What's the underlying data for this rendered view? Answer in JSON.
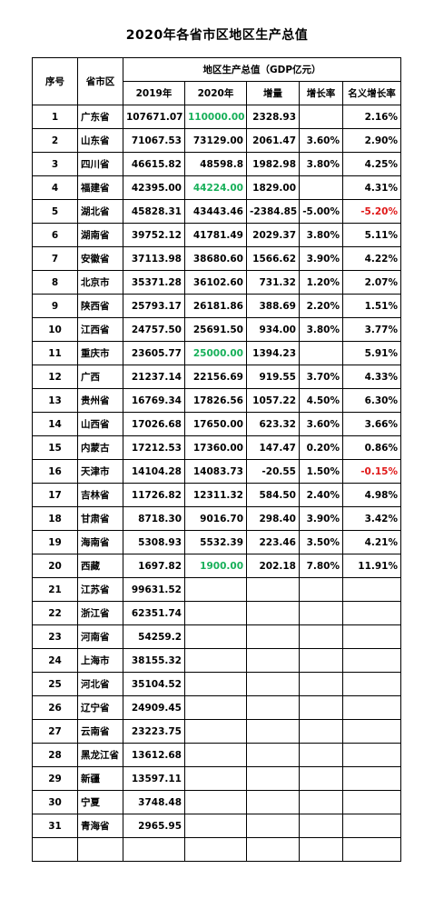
{
  "title": "2020年各省市区地区生产总值",
  "headers": {
    "index": "序号",
    "province": "省市区",
    "gdp_group": "地区生产总值（GDP亿元）",
    "y2019": "2019年",
    "y2020": "2020年",
    "increase": "增量",
    "growth": "增长率",
    "nominal_growth": "名义增长率"
  },
  "colors": {
    "estimated_value": "#18b05a",
    "negative_growth": "#e01818"
  },
  "rows": [
    {
      "idx": "1",
      "prov": "广东省",
      "v2019": "107671.07",
      "v2020": "110000.00",
      "v2020_color": "green",
      "inc": "2328.93",
      "growth": "",
      "nominal": "2.16%",
      "nominal_color": ""
    },
    {
      "idx": "2",
      "prov": "山东省",
      "v2019": "71067.53",
      "v2020": "73129.00",
      "v2020_color": "",
      "inc": "2061.47",
      "growth": "3.60%",
      "nominal": "2.90%",
      "nominal_color": ""
    },
    {
      "idx": "3",
      "prov": "四川省",
      "v2019": "46615.82",
      "v2020": "48598.8",
      "v2020_color": "",
      "inc": "1982.98",
      "growth": "3.80%",
      "nominal": "4.25%",
      "nominal_color": ""
    },
    {
      "idx": "4",
      "prov": "福建省",
      "v2019": "42395.00",
      "v2020": "44224.00",
      "v2020_color": "green",
      "inc": "1829.00",
      "growth": "",
      "nominal": "4.31%",
      "nominal_color": ""
    },
    {
      "idx": "5",
      "prov": "湖北省",
      "v2019": "45828.31",
      "v2020": "43443.46",
      "v2020_color": "",
      "inc": "-2384.85",
      "growth": "-5.00%",
      "nominal": "-5.20%",
      "nominal_color": "red"
    },
    {
      "idx": "6",
      "prov": "湖南省",
      "v2019": "39752.12",
      "v2020": "41781.49",
      "v2020_color": "",
      "inc": "2029.37",
      "growth": "3.80%",
      "nominal": "5.11%",
      "nominal_color": ""
    },
    {
      "idx": "7",
      "prov": "安徽省",
      "v2019": "37113.98",
      "v2020": "38680.60",
      "v2020_color": "",
      "inc": "1566.62",
      "growth": "3.90%",
      "nominal": "4.22%",
      "nominal_color": ""
    },
    {
      "idx": "8",
      "prov": "北京市",
      "v2019": "35371.28",
      "v2020": "36102.60",
      "v2020_color": "",
      "inc": "731.32",
      "growth": "1.20%",
      "nominal": "2.07%",
      "nominal_color": ""
    },
    {
      "idx": "9",
      "prov": "陕西省",
      "v2019": "25793.17",
      "v2020": "26181.86",
      "v2020_color": "",
      "inc": "388.69",
      "growth": "2.20%",
      "nominal": "1.51%",
      "nominal_color": ""
    },
    {
      "idx": "10",
      "prov": "江西省",
      "v2019": "24757.50",
      "v2020": "25691.50",
      "v2020_color": "",
      "inc": "934.00",
      "growth": "3.80%",
      "nominal": "3.77%",
      "nominal_color": ""
    },
    {
      "idx": "11",
      "prov": "重庆市",
      "v2019": "23605.77",
      "v2020": "25000.00",
      "v2020_color": "green",
      "inc": "1394.23",
      "growth": "",
      "nominal": "5.91%",
      "nominal_color": ""
    },
    {
      "idx": "12",
      "prov": "广西",
      "v2019": "21237.14",
      "v2020": "22156.69",
      "v2020_color": "",
      "inc": "919.55",
      "growth": "3.70%",
      "nominal": "4.33%",
      "nominal_color": ""
    },
    {
      "idx": "13",
      "prov": "贵州省",
      "v2019": "16769.34",
      "v2020": "17826.56",
      "v2020_color": "",
      "inc": "1057.22",
      "growth": "4.50%",
      "nominal": "6.30%",
      "nominal_color": ""
    },
    {
      "idx": "14",
      "prov": "山西省",
      "v2019": "17026.68",
      "v2020": "17650.00",
      "v2020_color": "",
      "inc": "623.32",
      "growth": "3.60%",
      "nominal": "3.66%",
      "nominal_color": ""
    },
    {
      "idx": "15",
      "prov": "内蒙古",
      "v2019": "17212.53",
      "v2020": "17360.00",
      "v2020_color": "",
      "inc": "147.47",
      "growth": "0.20%",
      "nominal": "0.86%",
      "nominal_color": ""
    },
    {
      "idx": "16",
      "prov": "天津市",
      "v2019": "14104.28",
      "v2020": "14083.73",
      "v2020_color": "",
      "inc": "-20.55",
      "growth": "1.50%",
      "nominal": "-0.15%",
      "nominal_color": "red"
    },
    {
      "idx": "17",
      "prov": "吉林省",
      "v2019": "11726.82",
      "v2020": "12311.32",
      "v2020_color": "",
      "inc": "584.50",
      "growth": "2.40%",
      "nominal": "4.98%",
      "nominal_color": ""
    },
    {
      "idx": "18",
      "prov": "甘肃省",
      "v2019": "8718.30",
      "v2020": "9016.70",
      "v2020_color": "",
      "inc": "298.40",
      "growth": "3.90%",
      "nominal": "3.42%",
      "nominal_color": ""
    },
    {
      "idx": "19",
      "prov": "海南省",
      "v2019": "5308.93",
      "v2020": "5532.39",
      "v2020_color": "",
      "inc": "223.46",
      "growth": "3.50%",
      "nominal": "4.21%",
      "nominal_color": ""
    },
    {
      "idx": "20",
      "prov": "西藏",
      "v2019": "1697.82",
      "v2020": "1900.00",
      "v2020_color": "green",
      "inc": "202.18",
      "growth": "7.80%",
      "nominal": "11.91%",
      "nominal_color": ""
    },
    {
      "idx": "21",
      "prov": "江苏省",
      "v2019": "99631.52",
      "v2020": "",
      "v2020_color": "",
      "inc": "",
      "growth": "",
      "nominal": "",
      "nominal_color": ""
    },
    {
      "idx": "22",
      "prov": "浙江省",
      "v2019": "62351.74",
      "v2020": "",
      "v2020_color": "",
      "inc": "",
      "growth": "",
      "nominal": "",
      "nominal_color": ""
    },
    {
      "idx": "23",
      "prov": "河南省",
      "v2019": "54259.2",
      "v2020": "",
      "v2020_color": "",
      "inc": "",
      "growth": "",
      "nominal": "",
      "nominal_color": ""
    },
    {
      "idx": "24",
      "prov": "上海市",
      "v2019": "38155.32",
      "v2020": "",
      "v2020_color": "",
      "inc": "",
      "growth": "",
      "nominal": "",
      "nominal_color": ""
    },
    {
      "idx": "25",
      "prov": "河北省",
      "v2019": "35104.52",
      "v2020": "",
      "v2020_color": "",
      "inc": "",
      "growth": "",
      "nominal": "",
      "nominal_color": ""
    },
    {
      "idx": "26",
      "prov": "辽宁省",
      "v2019": "24909.45",
      "v2020": "",
      "v2020_color": "",
      "inc": "",
      "growth": "",
      "nominal": "",
      "nominal_color": ""
    },
    {
      "idx": "27",
      "prov": "云南省",
      "v2019": "23223.75",
      "v2020": "",
      "v2020_color": "",
      "inc": "",
      "growth": "",
      "nominal": "",
      "nominal_color": ""
    },
    {
      "idx": "28",
      "prov": "黑龙江省",
      "v2019": "13612.68",
      "v2020": "",
      "v2020_color": "",
      "inc": "",
      "growth": "",
      "nominal": "",
      "nominal_color": ""
    },
    {
      "idx": "29",
      "prov": "新疆",
      "v2019": "13597.11",
      "v2020": "",
      "v2020_color": "",
      "inc": "",
      "growth": "",
      "nominal": "",
      "nominal_color": ""
    },
    {
      "idx": "30",
      "prov": "宁夏",
      "v2019": "3748.48",
      "v2020": "",
      "v2020_color": "",
      "inc": "",
      "growth": "",
      "nominal": "",
      "nominal_color": ""
    },
    {
      "idx": "31",
      "prov": "青海省",
      "v2019": "2965.95",
      "v2020": "",
      "v2020_color": "",
      "inc": "",
      "growth": "",
      "nominal": "",
      "nominal_color": ""
    },
    {
      "idx": "",
      "prov": "",
      "v2019": "",
      "v2020": "",
      "v2020_color": "",
      "inc": "",
      "growth": "",
      "nominal": "",
      "nominal_color": ""
    }
  ]
}
